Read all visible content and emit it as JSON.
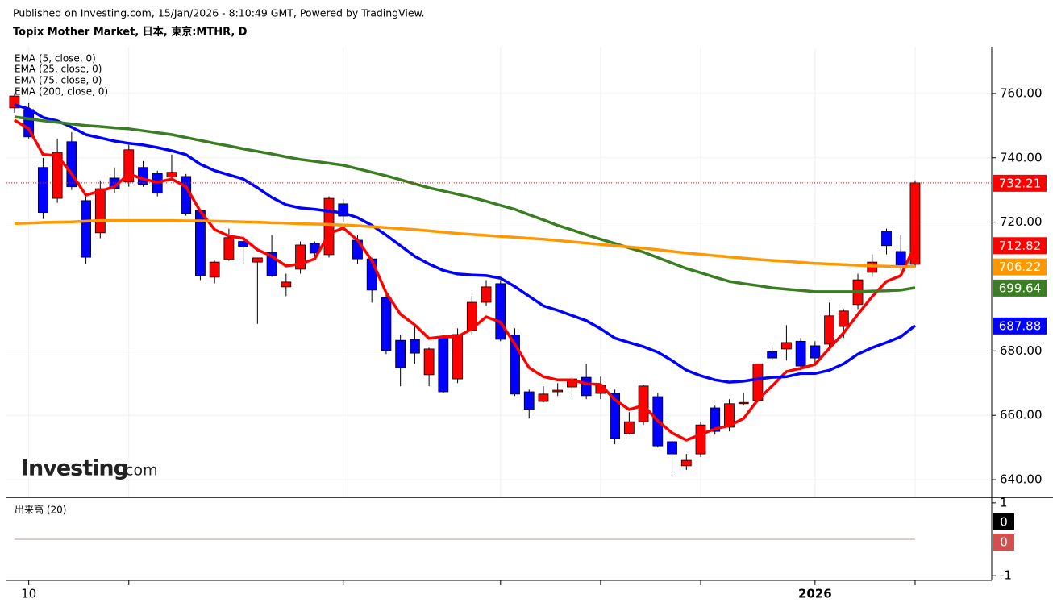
{
  "header": {
    "published": "Published on Investing.com, 15/Jan/2026 - 8:10:49 GMT, Powered by TradingView.",
    "title": "Topix Mother Market, 日本, 東京:MTHR, D"
  },
  "logo": {
    "name": "Investing",
    "suffix": ".com"
  },
  "chart_data": {
    "type": "candlestick",
    "categories": [
      null,
      "10",
      null,
      null,
      null,
      null,
      null,
      null,
      null,
      null,
      null,
      null,
      null,
      null,
      null,
      null,
      null,
      null,
      null,
      null,
      null,
      null,
      null,
      null,
      null,
      null,
      null,
      null,
      null,
      null,
      null,
      null,
      null,
      null,
      null,
      null,
      null,
      null,
      null,
      null,
      null,
      null,
      null,
      null,
      null,
      null,
      null,
      null,
      null,
      null,
      null,
      null,
      null,
      null,
      null,
      null,
      "2026",
      null,
      null,
      null,
      null,
      null,
      null,
      null
    ],
    "xticks": [
      1,
      8,
      23,
      34,
      41,
      48,
      56,
      63
    ],
    "xlim": [
      -0.56,
      68.36
    ],
    "open": [
      755.5,
      755,
      737,
      727.4,
      745,
      726.7,
      716.7,
      733.7,
      732.5,
      737,
      735.2,
      734,
      734.2,
      723.7,
      702.9,
      708.4,
      714,
      707.6,
      710.7,
      699.9,
      705.4,
      713.4,
      709.9,
      725.7,
      714.4,
      708.6,
      696.6,
      683.3,
      683.6,
      672.6,
      684.4,
      671.3,
      686.4,
      695.1,
      700.9,
      684.9,
      667.3,
      664.3,
      667.3,
      668.8,
      671.8,
      666.8,
      666.8,
      654.3,
      658,
      665.8,
      651.8,
      644.3,
      648,
      662.3,
      656.3,
      663.6,
      664.6,
      679.8,
      680.6,
      683,
      681.6,
      682.1,
      687.6,
      694.4,
      704.4,
      717.2,
      710.9,
      706.9
    ],
    "high": [
      760,
      757,
      740,
      746,
      748,
      728,
      733,
      737,
      744,
      739,
      736,
      741,
      735,
      724,
      708,
      718,
      716,
      709,
      716,
      704,
      714,
      714,
      728,
      727,
      716,
      709,
      698,
      685,
      688,
      681,
      685,
      687,
      697,
      702,
      702,
      687,
      668,
      669,
      670,
      672,
      676,
      672,
      668,
      661,
      669.5,
      667,
      652,
      648,
      658,
      663,
      665,
      667,
      676,
      681,
      688,
      684,
      683,
      695,
      693,
      704,
      710,
      718,
      716,
      733
    ],
    "low": [
      754,
      746,
      721,
      726,
      730,
      707,
      715,
      729,
      731,
      731,
      728,
      733,
      722,
      702,
      701,
      708,
      707,
      688.4,
      703,
      697,
      704,
      709,
      709,
      720,
      707,
      695,
      679,
      669,
      676,
      669,
      667,
      670,
      685,
      694,
      683,
      666,
      659,
      664,
      666,
      665,
      665,
      665,
      651,
      654,
      657,
      650,
      642,
      643,
      647,
      654,
      655,
      663,
      664,
      677,
      677,
      674,
      676,
      681,
      684,
      693,
      703,
      710,
      705,
      706
    ],
    "close": [
      759.2,
      746.5,
      723,
      741.7,
      731,
      709.1,
      730.4,
      730.4,
      742.5,
      731.7,
      729,
      735.5,
      722.7,
      703.4,
      707.6,
      715.2,
      712.4,
      708.9,
      703.4,
      701.4,
      712.9,
      710.4,
      727.4,
      721.9,
      708.6,
      698.9,
      680.1,
      674.8,
      679.3,
      680.6,
      667.3,
      685.1,
      695.1,
      699.9,
      683.6,
      666.6,
      661.8,
      666.6,
      667.8,
      671.3,
      666.1,
      669.3,
      652.8,
      658,
      669.1,
      650.5,
      648,
      646,
      657,
      655,
      663.6,
      664,
      676,
      677.8,
      682.6,
      675.3,
      677.8,
      690.9,
      692.4,
      702.1,
      707.6,
      712.7,
      706.6,
      732.21
    ],
    "up_color": "#ff0000",
    "down_color": "#0000ff",
    "ema": [
      {
        "name": "EMA (5, close, 0)",
        "color": "#ff0000",
        "values": [
          751.7,
          749,
          741,
          740.7,
          735,
          728.4,
          729.7,
          731,
          735,
          733.4,
          732.4,
          733.4,
          731,
          723.4,
          717.7,
          715.7,
          715,
          711.4,
          709.4,
          706.4,
          707,
          708.6,
          716.4,
          718.2,
          714.4,
          708.1,
          698.1,
          691.4,
          688.1,
          683.9,
          684.4,
          684.4,
          686.9,
          690.6,
          688.9,
          682.1,
          674.8,
          672,
          671,
          671,
          669.8,
          669.6,
          664.8,
          661.8,
          663.1,
          658.3,
          654.5,
          652.3,
          654,
          655.8,
          656.8,
          659,
          664.8,
          669.1,
          673.6,
          674.6,
          675.8,
          680.8,
          685.6,
          691.4,
          696.9,
          701.6,
          703.4,
          712.82
        ]
      },
      {
        "name": "EMA (25, close, 0)",
        "color": "#0000ff",
        "values": [
          756.5,
          755.2,
          752.5,
          751.5,
          749.5,
          747.2,
          746.2,
          745.2,
          744.5,
          744,
          743.2,
          742.2,
          741,
          738,
          736,
          734.7,
          733.4,
          730.7,
          727.7,
          725.4,
          724.4,
          724,
          723.4,
          722.9,
          721.4,
          719,
          716,
          712.7,
          709.4,
          707,
          705,
          703.9,
          703.6,
          703.4,
          702.6,
          700,
          697,
          694,
          692.6,
          691,
          689.4,
          686.9,
          684,
          682.6,
          681.3,
          679.6,
          677,
          674,
          672.3,
          671,
          670.3,
          670.6,
          671.3,
          671.8,
          672,
          673,
          673,
          674,
          676,
          679,
          681,
          682.6,
          684.4,
          687.88
        ]
      },
      {
        "name": "EMA (75, close, 0)",
        "color": "#3a7d22",
        "values": [
          752.7,
          752.1,
          751.5,
          751,
          750.5,
          750,
          749.7,
          749.3,
          749,
          748.4,
          747.8,
          747.2,
          746.3,
          745.4,
          744.5,
          743.7,
          742.8,
          742,
          741.2,
          740.3,
          739.5,
          738.9,
          738.3,
          737.7,
          736.6,
          735.5,
          734.4,
          733.2,
          731.9,
          730.7,
          729.7,
          728.7,
          727.7,
          726.5,
          725.2,
          724,
          722.3,
          720.7,
          719,
          717.6,
          716.1,
          714.7,
          713.4,
          712,
          710.7,
          709,
          707.3,
          705.6,
          704.3,
          702.9,
          701.6,
          700.9,
          700.3,
          699.6,
          699.2,
          698.8,
          698.4,
          698.4,
          698.4,
          698.4,
          698.6,
          698.7,
          698.9,
          699.64
        ]
      },
      {
        "name": "EMA (200, close, 0)",
        "color": "#ff9800",
        "values": [
          719.6,
          719.7,
          719.9,
          720,
          720.1,
          720.3,
          720.5,
          720.5,
          720.5,
          720.5,
          720.5,
          720.5,
          720.4,
          720.4,
          720.3,
          720.2,
          720.1,
          720,
          719.8,
          719.7,
          719.5,
          719.4,
          719.3,
          719.1,
          718.9,
          718.6,
          718.3,
          718,
          717.7,
          717.3,
          716.9,
          716.5,
          716.2,
          715.9,
          715.6,
          715.3,
          715,
          714.7,
          714.3,
          713.9,
          713.5,
          713.1,
          712.7,
          712.3,
          711.9,
          711.4,
          710.9,
          710.4,
          710,
          709.6,
          709.2,
          708.8,
          708.4,
          708.1,
          707.8,
          707.5,
          707.2,
          707,
          706.8,
          706.6,
          706.4,
          706.3,
          706.2,
          706.22
        ]
      }
    ],
    "ylim": [
      634.5,
      774.5
    ],
    "yticks": [
      {
        "value": 640,
        "label": "640.00"
      },
      {
        "value": 660,
        "label": "660.00"
      },
      {
        "value": 680,
        "label": "680.00"
      },
      {
        "value": 720,
        "label": "720.00"
      },
      {
        "value": 740,
        "label": "740.00"
      },
      {
        "value": 760,
        "label": "760.00"
      }
    ],
    "grid": true,
    "volume": {
      "name": "出来高 (20)",
      "color": "#d05050",
      "ma_color": "#000000",
      "values": [
        0,
        0,
        0,
        0,
        0,
        0,
        0,
        0,
        0,
        0,
        0,
        0,
        0,
        0,
        0,
        0,
        0,
        0,
        0,
        0,
        0,
        0,
        0,
        0,
        0,
        0,
        0,
        0,
        0,
        0,
        0,
        0,
        0,
        0,
        0,
        0,
        0,
        0,
        0,
        0,
        0,
        0,
        0,
        0,
        0,
        0,
        0,
        0,
        0,
        0,
        0,
        0,
        0,
        0,
        0,
        0,
        0,
        0,
        0,
        0,
        0,
        0,
        0,
        0
      ],
      "ma": [
        0,
        0,
        0,
        0,
        0,
        0,
        0,
        0,
        0,
        0,
        0,
        0,
        0,
        0,
        0,
        0,
        0,
        0,
        0,
        0,
        0,
        0,
        0,
        0,
        0,
        0,
        0,
        0,
        0,
        0,
        0,
        0,
        0,
        0,
        0,
        0,
        0,
        0,
        0,
        0,
        0,
        0,
        0,
        0,
        0,
        0,
        0,
        0,
        0,
        0,
        0,
        0,
        0,
        0,
        0,
        0,
        0,
        0,
        0,
        0,
        0,
        0,
        0,
        0
      ],
      "y2lim": [
        -1.13,
        1.13
      ],
      "y2ticks": [
        -1,
        1
      ]
    }
  }
}
